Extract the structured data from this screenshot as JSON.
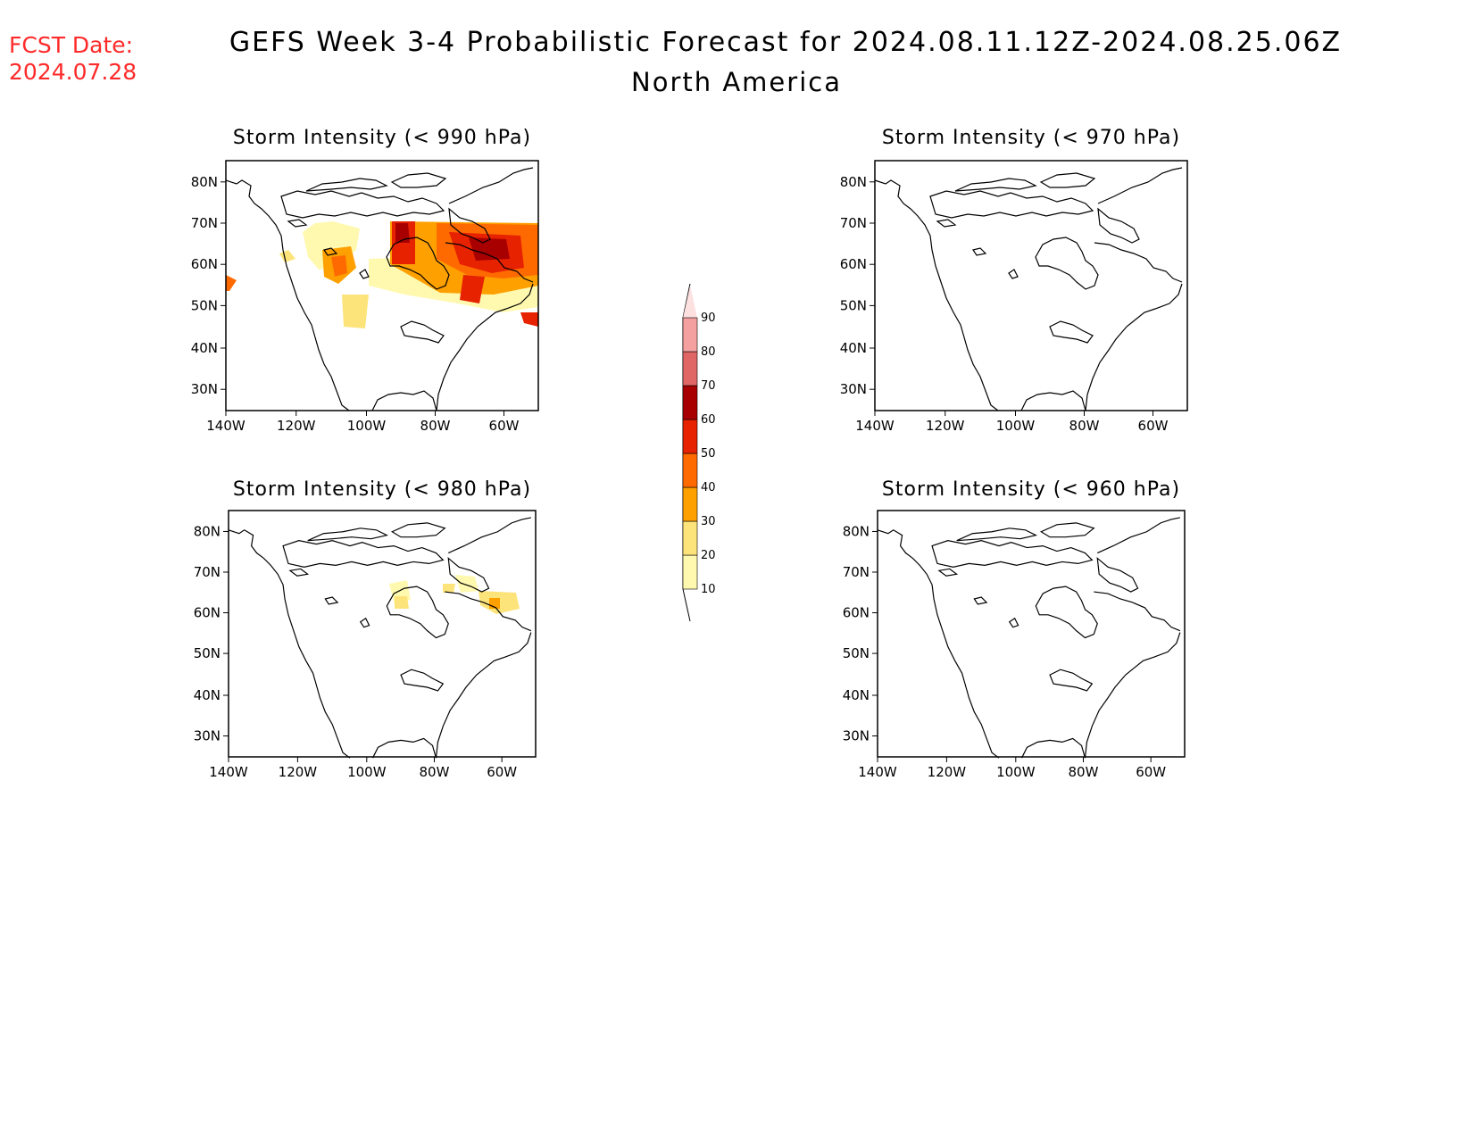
{
  "header": {
    "fcst_label": "FCST Date:",
    "fcst_date": "2024.07.28",
    "title": "GEFS Week 3-4 Probabilistic Forecast for 2024.08.11.12Z-2024.08.25.06Z",
    "subtitle": "North America"
  },
  "axes": {
    "lat_ticks": [
      "80N",
      "70N",
      "60N",
      "50N",
      "40N",
      "30N"
    ],
    "lon_ticks": [
      "140W",
      "120W",
      "100W",
      "80W",
      "60W"
    ]
  },
  "panels": [
    {
      "id": "p990",
      "title": "Storm Intensity (< 990 hPa)"
    },
    {
      "id": "p970",
      "title": "Storm Intensity (< 970 hPa)"
    },
    {
      "id": "p980",
      "title": "Storm Intensity (< 980 hPa)"
    },
    {
      "id": "p960",
      "title": "Storm Intensity (< 960 hPa)"
    }
  ],
  "colorbar": {
    "levels": [
      "10",
      "20",
      "30",
      "40",
      "50",
      "60",
      "70",
      "80",
      "90"
    ],
    "colors": [
      "#fff9b0",
      "#fde47a",
      "#fea000",
      "#ff6a00",
      "#e62200",
      "#a80000",
      "#e06666",
      "#f4a0a0",
      "#fde0e0"
    ]
  }
}
